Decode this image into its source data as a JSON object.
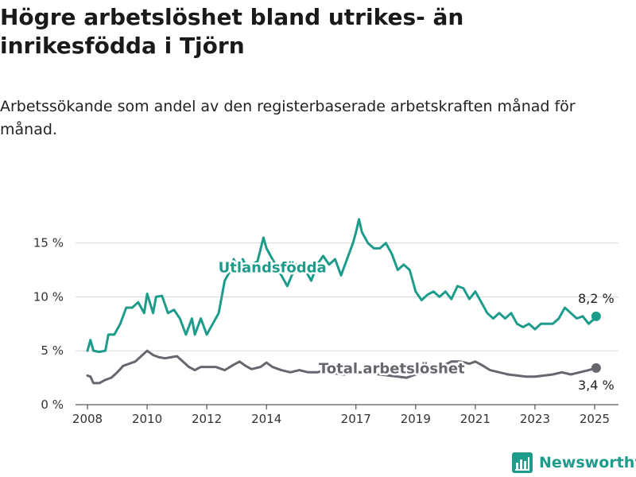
{
  "header": {
    "title": "Högre arbetslöshet bland utrikes- än inrikesfödda i Tjörn",
    "subtitle": "Arbetssökande som andel av den registerbaserade arbetskraften månad för månad."
  },
  "brand": {
    "name": "Newsworthy",
    "icon": "bar-chart-logo-icon",
    "color": "#1d9c8c"
  },
  "chart_data": {
    "type": "line",
    "title": "",
    "xlabel": "",
    "ylabel": "",
    "ylim": [
      0,
      18
    ],
    "yticks": [
      0,
      5,
      10,
      15
    ],
    "ytick_labels": [
      "0 %",
      "5 %",
      "10 %",
      "15 %"
    ],
    "xlim": [
      2007.6,
      2025.8
    ],
    "xticks": [
      2008,
      2010,
      2012,
      2014,
      2017,
      2019,
      2021,
      2023,
      2025
    ],
    "xtick_labels": [
      "2008",
      "2010",
      "2012",
      "2014",
      "2017",
      "2019",
      "2021",
      "2023",
      "2025"
    ],
    "grid": true,
    "series": [
      {
        "name": "Utlandsfödda",
        "color": "#1d9c8c",
        "end_label": "8,2 %",
        "points": [
          [
            2008.0,
            5.0
          ],
          [
            2008.1,
            6.0
          ],
          [
            2008.2,
            5.0
          ],
          [
            2008.4,
            4.9
          ],
          [
            2008.6,
            5.0
          ],
          [
            2008.7,
            6.5
          ],
          [
            2008.9,
            6.5
          ],
          [
            2009.1,
            7.5
          ],
          [
            2009.3,
            9.0
          ],
          [
            2009.5,
            9.0
          ],
          [
            2009.7,
            9.5
          ],
          [
            2009.9,
            8.5
          ],
          [
            2010.0,
            10.3
          ],
          [
            2010.2,
            8.5
          ],
          [
            2010.3,
            10.0
          ],
          [
            2010.5,
            10.1
          ],
          [
            2010.7,
            8.5
          ],
          [
            2010.9,
            8.8
          ],
          [
            2011.1,
            8.0
          ],
          [
            2011.3,
            6.5
          ],
          [
            2011.5,
            8.0
          ],
          [
            2011.6,
            6.5
          ],
          [
            2011.8,
            8.0
          ],
          [
            2012.0,
            6.5
          ],
          [
            2012.2,
            7.5
          ],
          [
            2012.4,
            8.5
          ],
          [
            2012.5,
            10.0
          ],
          [
            2012.6,
            11.5
          ],
          [
            2012.8,
            12.5
          ],
          [
            2012.9,
            13.5
          ],
          [
            2013.0,
            13.0
          ],
          [
            2013.1,
            12.5
          ],
          [
            2013.2,
            13.5
          ],
          [
            2013.3,
            13.0
          ],
          [
            2013.5,
            13.0
          ],
          [
            2013.7,
            13.3
          ],
          [
            2013.9,
            15.5
          ],
          [
            2014.0,
            14.5
          ],
          [
            2014.2,
            13.5
          ],
          [
            2014.4,
            12.5
          ],
          [
            2014.7,
            11.0
          ],
          [
            2015.0,
            13.0
          ],
          [
            2015.3,
            12.5
          ],
          [
            2015.5,
            11.5
          ],
          [
            2015.7,
            13.0
          ],
          [
            2015.9,
            13.8
          ],
          [
            2016.1,
            13.0
          ],
          [
            2016.3,
            13.5
          ],
          [
            2016.5,
            12.0
          ],
          [
            2016.7,
            13.5
          ],
          [
            2016.9,
            15.0
          ],
          [
            2017.0,
            16.0
          ],
          [
            2017.1,
            17.2
          ],
          [
            2017.2,
            16.0
          ],
          [
            2017.4,
            15.0
          ],
          [
            2017.6,
            14.5
          ],
          [
            2017.8,
            14.5
          ],
          [
            2018.0,
            15.0
          ],
          [
            2018.2,
            14.0
          ],
          [
            2018.4,
            12.5
          ],
          [
            2018.6,
            13.0
          ],
          [
            2018.8,
            12.5
          ],
          [
            2018.9,
            11.5
          ],
          [
            2019.0,
            10.5
          ],
          [
            2019.2,
            9.7
          ],
          [
            2019.4,
            10.2
          ],
          [
            2019.6,
            10.5
          ],
          [
            2019.8,
            10.0
          ],
          [
            2020.0,
            10.5
          ],
          [
            2020.2,
            9.8
          ],
          [
            2020.4,
            11.0
          ],
          [
            2020.6,
            10.8
          ],
          [
            2020.8,
            9.8
          ],
          [
            2021.0,
            10.5
          ],
          [
            2021.2,
            9.5
          ],
          [
            2021.4,
            8.5
          ],
          [
            2021.6,
            8.0
          ],
          [
            2021.8,
            8.5
          ],
          [
            2022.0,
            8.0
          ],
          [
            2022.2,
            8.5
          ],
          [
            2022.4,
            7.5
          ],
          [
            2022.6,
            7.2
          ],
          [
            2022.8,
            7.5
          ],
          [
            2023.0,
            7.0
          ],
          [
            2023.2,
            7.5
          ],
          [
            2023.4,
            7.5
          ],
          [
            2023.6,
            7.5
          ],
          [
            2023.8,
            8.0
          ],
          [
            2024.0,
            9.0
          ],
          [
            2024.2,
            8.5
          ],
          [
            2024.4,
            8.0
          ],
          [
            2024.6,
            8.2
          ],
          [
            2024.8,
            7.5
          ],
          [
            2025.0,
            8.0
          ],
          [
            2025.05,
            8.2
          ]
        ]
      },
      {
        "name": "Total arbetslöshet",
        "color": "#66666e",
        "end_label": "3,4 %",
        "points": [
          [
            2008.0,
            2.7
          ],
          [
            2008.1,
            2.6
          ],
          [
            2008.2,
            2.0
          ],
          [
            2008.4,
            2.0
          ],
          [
            2008.6,
            2.3
          ],
          [
            2008.8,
            2.5
          ],
          [
            2009.0,
            3.0
          ],
          [
            2009.2,
            3.6
          ],
          [
            2009.4,
            3.8
          ],
          [
            2009.6,
            4.0
          ],
          [
            2009.8,
            4.5
          ],
          [
            2010.0,
            5.0
          ],
          [
            2010.2,
            4.6
          ],
          [
            2010.4,
            4.4
          ],
          [
            2010.6,
            4.3
          ],
          [
            2010.8,
            4.4
          ],
          [
            2011.0,
            4.5
          ],
          [
            2011.2,
            4.0
          ],
          [
            2011.4,
            3.5
          ],
          [
            2011.6,
            3.2
          ],
          [
            2011.8,
            3.5
          ],
          [
            2012.0,
            3.5
          ],
          [
            2012.3,
            3.5
          ],
          [
            2012.6,
            3.2
          ],
          [
            2012.9,
            3.7
          ],
          [
            2013.1,
            4.0
          ],
          [
            2013.3,
            3.6
          ],
          [
            2013.5,
            3.3
          ],
          [
            2013.8,
            3.5
          ],
          [
            2014.0,
            3.9
          ],
          [
            2014.2,
            3.5
          ],
          [
            2014.5,
            3.2
          ],
          [
            2014.8,
            3.0
          ],
          [
            2015.1,
            3.2
          ],
          [
            2015.4,
            3.0
          ],
          [
            2015.7,
            3.0
          ],
          [
            2016.0,
            3.2
          ],
          [
            2016.3,
            2.9
          ],
          [
            2016.6,
            2.8
          ],
          [
            2016.9,
            3.0
          ],
          [
            2017.2,
            3.0
          ],
          [
            2017.5,
            2.9
          ],
          [
            2017.8,
            2.8
          ],
          [
            2018.1,
            2.7
          ],
          [
            2018.4,
            2.6
          ],
          [
            2018.7,
            2.5
          ],
          [
            2019.0,
            2.8
          ],
          [
            2019.3,
            3.0
          ],
          [
            2019.6,
            3.2
          ],
          [
            2019.9,
            3.6
          ],
          [
            2020.2,
            4.0
          ],
          [
            2020.5,
            4.0
          ],
          [
            2020.8,
            3.8
          ],
          [
            2021.0,
            4.0
          ],
          [
            2021.2,
            3.7
          ],
          [
            2021.5,
            3.2
          ],
          [
            2021.8,
            3.0
          ],
          [
            2022.1,
            2.8
          ],
          [
            2022.4,
            2.7
          ],
          [
            2022.7,
            2.6
          ],
          [
            2023.0,
            2.6
          ],
          [
            2023.3,
            2.7
          ],
          [
            2023.6,
            2.8
          ],
          [
            2023.9,
            3.0
          ],
          [
            2024.2,
            2.8
          ],
          [
            2024.5,
            3.0
          ],
          [
            2024.8,
            3.2
          ],
          [
            2025.05,
            3.4
          ]
        ]
      }
    ],
    "annotations": [
      {
        "text": "Utlandsfödda",
        "series": "Utlandsfödda",
        "x": 2014.2,
        "y": 12.3
      },
      {
        "text": "Total arbetslöshet",
        "series": "Total arbetslöshet",
        "x": 2018.2,
        "y": 2.9
      }
    ]
  }
}
